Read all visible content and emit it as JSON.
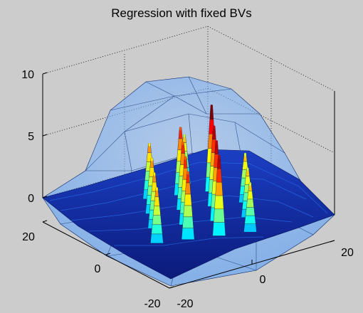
{
  "chart_data": {
    "type": "surface",
    "title": "Regression with fixed BVs",
    "xlabel": "",
    "ylabel": "",
    "zlabel": "",
    "xlim": [
      -20,
      20
    ],
    "ylim": [
      -20,
      20
    ],
    "zlim": [
      -1,
      10
    ],
    "x_ticks": [
      -20,
      0,
      20
    ],
    "y_ticks": [
      -20,
      0,
      20
    ],
    "z_ticks": [
      0,
      5,
      10
    ],
    "x_tick_labels": [
      "-20",
      "0",
      "20"
    ],
    "y_tick_labels": [
      "-20",
      "0",
      "20"
    ],
    "z_tick_labels": [
      "0",
      "5",
      "10"
    ],
    "grid": true,
    "colormap": "jet",
    "series": [
      {
        "surface": "translucent dome",
        "color": "#4d9bff",
        "opacity": 0.45,
        "peak_z": 9.5,
        "x_range": [
          -20,
          20
        ],
        "y_range": [
          -20,
          20
        ]
      },
      {
        "surface": "regression surface",
        "colormap": "jet",
        "z_range": [
          -1,
          7
        ],
        "peaks": [
          {
            "x": -12,
            "y": -2,
            "z": 6.5
          },
          {
            "x": -6,
            "y": 2,
            "z": 6.5
          },
          {
            "x": 0,
            "y": 6,
            "z": 6.5
          },
          {
            "x": 6,
            "y": 10,
            "z": 7
          },
          {
            "x": -10,
            "y": -8,
            "z": 5.5
          },
          {
            "x": -4,
            "y": -4,
            "z": 5.5
          },
          {
            "x": 2,
            "y": 0,
            "z": 5.5
          },
          {
            "x": 8,
            "y": 4,
            "z": 5.5
          },
          {
            "x": -8,
            "y": -14,
            "z": 4.5
          },
          {
            "x": -2,
            "y": -10,
            "z": 4.5
          },
          {
            "x": 4,
            "y": -6,
            "z": 4.5
          },
          {
            "x": 10,
            "y": -2,
            "z": 4.5
          },
          {
            "x": -14,
            "y": 4,
            "z": 4
          },
          {
            "x": -8,
            "y": 8,
            "z": 4
          },
          {
            "x": -2,
            "y": 12,
            "z": 4
          },
          {
            "x": 12,
            "y": 8,
            "z": 4
          }
        ]
      }
    ]
  }
}
